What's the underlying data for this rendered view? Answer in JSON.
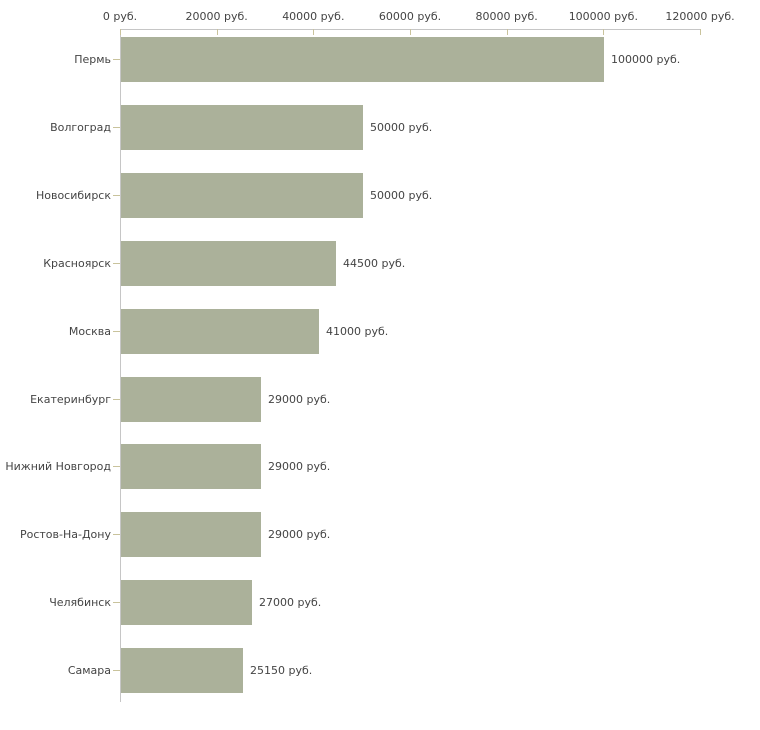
{
  "chart_data": {
    "type": "bar",
    "orientation": "horizontal",
    "title": "",
    "xlabel": "",
    "ylabel": "",
    "xlim": [
      0,
      120000
    ],
    "grid": false,
    "legend": "none",
    "value_unit": "руб.",
    "categories": [
      "Пермь",
      "Волгоград",
      "Новосибирск",
      "Красноярск",
      "Москва",
      "Екатеринбург",
      "Нижний Новгород",
      "Ростов-На-Дону",
      "Челябинск",
      "Самара"
    ],
    "values": [
      100000,
      50000,
      50000,
      44500,
      41000,
      29000,
      29000,
      29000,
      27000,
      25150
    ],
    "value_labels": [
      "100000 руб.",
      "50000 руб.",
      "50000 руб.",
      "44500 руб.",
      "41000 руб.",
      "29000 руб.",
      "29000 руб.",
      "29000 руб.",
      "27000 руб.",
      "25150 руб."
    ],
    "x_tick_values": [
      0,
      20000,
      40000,
      60000,
      80000,
      100000,
      120000
    ],
    "x_tick_labels": [
      "0 руб.",
      "20000 руб.",
      "40000 руб.",
      "60000 руб.",
      "80000 руб.",
      "100000 руб.",
      "120000 руб."
    ],
    "colors": {
      "bar": "#abb19a",
      "axis_line": "#c6c6c6",
      "tick_mark": "#c9c39c",
      "text": "#444444",
      "background": "#ffffff"
    }
  }
}
